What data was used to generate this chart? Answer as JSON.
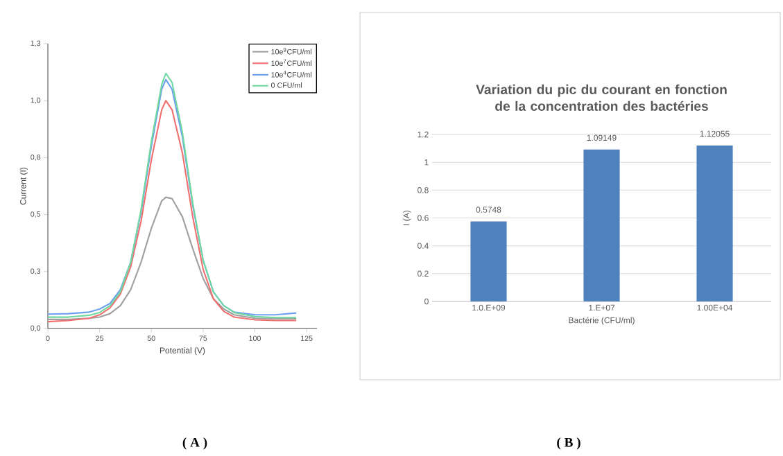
{
  "chart_data": [
    {
      "type": "line",
      "xlabel": "Potential (V)",
      "ylabel": "Current (I)",
      "xlim": [
        0,
        130
      ],
      "xticks": [
        0,
        25,
        50,
        75,
        100,
        125
      ],
      "ylim": [
        0,
        1.25
      ],
      "yticks": [
        {
          "value": 0,
          "label": "0,0"
        },
        {
          "value": 0.25,
          "label": "0,3"
        },
        {
          "value": 0.5,
          "label": "0,5"
        },
        {
          "value": 0.75,
          "label": "0,8"
        },
        {
          "value": 1.0,
          "label": "1,0"
        },
        {
          "value": 1.25,
          "label": "1,3"
        }
      ],
      "legend": "top right",
      "marker": "none",
      "line_style": "solid",
      "grid": false,
      "x": [
        0,
        10,
        20,
        25,
        30,
        35,
        40,
        45,
        50,
        55,
        57,
        60,
        65,
        70,
        75,
        80,
        85,
        90,
        100,
        110,
        120
      ],
      "series": [
        {
          "name": "10e$^{9}$CFU/ml",
          "color": "#a0a0a0",
          "values": [
            0.04,
            0.04,
            0.045,
            0.05,
            0.065,
            0.1,
            0.17,
            0.29,
            0.44,
            0.56,
            0.576,
            0.57,
            0.49,
            0.35,
            0.22,
            0.13,
            0.085,
            0.06,
            0.045,
            0.043,
            0.043
          ]
        },
        {
          "name": "10e$^{7}$CFU/ml",
          "color": "#f07070",
          "values": [
            0.03,
            0.035,
            0.045,
            0.06,
            0.09,
            0.15,
            0.27,
            0.47,
            0.74,
            0.96,
            1.0,
            0.96,
            0.77,
            0.49,
            0.26,
            0.13,
            0.075,
            0.05,
            0.038,
            0.035,
            0.035
          ]
        },
        {
          "name": "10e$^{4}$CFU/ml",
          "color": "#6fa0f0",
          "values": [
            0.063,
            0.065,
            0.072,
            0.085,
            0.11,
            0.17,
            0.29,
            0.51,
            0.8,
            1.05,
            1.092,
            1.05,
            0.84,
            0.54,
            0.3,
            0.16,
            0.1,
            0.072,
            0.06,
            0.06,
            0.068
          ]
        },
        {
          "name": "0 CFU/ml",
          "color": "#70d8a0",
          "values": [
            0.05,
            0.05,
            0.058,
            0.07,
            0.1,
            0.16,
            0.29,
            0.52,
            0.82,
            1.07,
            1.12,
            1.08,
            0.86,
            0.55,
            0.3,
            0.16,
            0.1,
            0.07,
            0.052,
            0.048,
            0.048
          ]
        }
      ],
      "annotations": [
        "( A )"
      ]
    },
    {
      "type": "bar",
      "title": "Variation du pic du courant en fonction de la concentration des bactéries",
      "xlabel": "Bactérie (CFU/ml)",
      "ylabel": "I (A)",
      "categories": [
        "1.0.E+09",
        "1.E+07",
        "1.00E+04"
      ],
      "values": [
        0.5748,
        1.09149,
        1.12055
      ],
      "color": "#4f81bd",
      "ylim": [
        0,
        1.2
      ],
      "yticks": [
        0,
        0.2,
        0.4,
        0.6,
        0.8,
        1,
        1.2
      ],
      "grid": "y",
      "data_labels": true,
      "annotations": [
        "( B )"
      ]
    }
  ]
}
